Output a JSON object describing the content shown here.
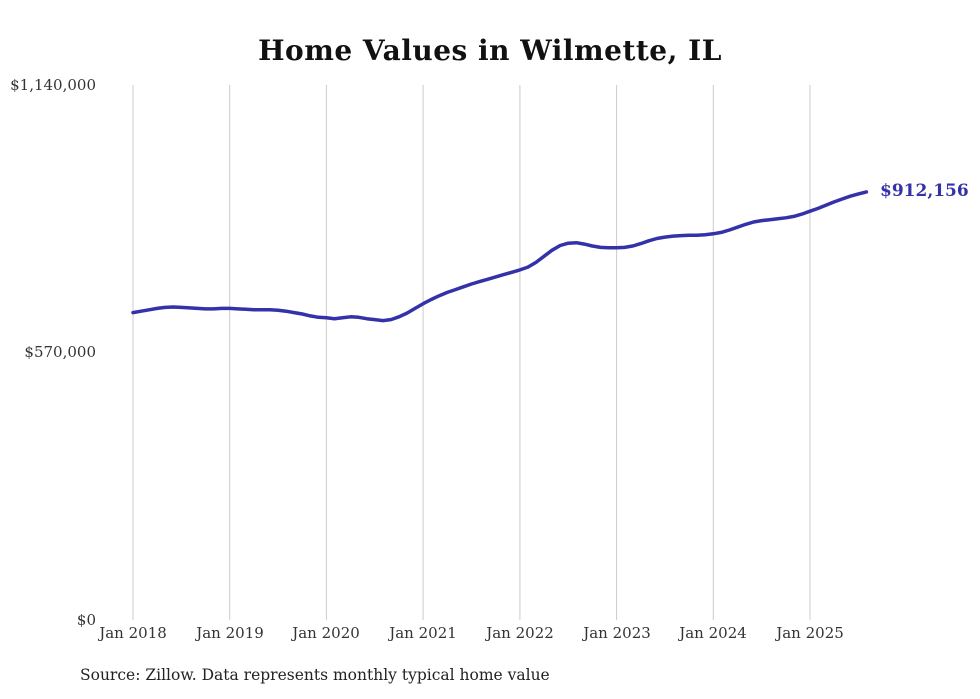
{
  "page": {
    "title": "Home Values in Wilmette, IL",
    "source_note": "Source: Zillow. Data represents monthly typical home value"
  },
  "chart_data": {
    "type": "line",
    "title": "Home Values in Wilmette, IL",
    "series_name": "Monthly typical home value",
    "x_start": "Jan 2018",
    "x_interval": "month",
    "x_tick_labels": [
      "Jan 2018",
      "Jan 2019",
      "Jan 2020",
      "Jan 2021",
      "Jan 2022",
      "Jan 2023",
      "Jan 2024",
      "Jan 2025"
    ],
    "y_ticks": [
      {
        "label": "$1,140,000",
        "value": 1140000
      },
      {
        "label": "$570,000",
        "value": 570000
      },
      {
        "label": "$0",
        "value": 0
      }
    ],
    "ylim": [
      0,
      1140000
    ],
    "grid": "vertical-only",
    "legend": "none",
    "line_color": "#3432a8",
    "grid_color": "#cccccc",
    "end_label": "$912,156",
    "end_value": 912156,
    "values": [
      655000,
      658000,
      661000,
      664000,
      666000,
      667000,
      666000,
      665000,
      664000,
      663000,
      663000,
      664000,
      664000,
      663000,
      662000,
      661000,
      661000,
      661000,
      660000,
      658000,
      655000,
      652000,
      648000,
      645000,
      644000,
      642000,
      644000,
      646000,
      645000,
      642000,
      640000,
      638000,
      640000,
      646000,
      654000,
      664000,
      674000,
      683000,
      691000,
      698000,
      704000,
      710000,
      716000,
      721000,
      726000,
      731000,
      736000,
      741000,
      746000,
      752000,
      762000,
      775000,
      788000,
      798000,
      803000,
      804000,
      801000,
      797000,
      794000,
      793000,
      793000,
      794000,
      797000,
      802000,
      808000,
      813000,
      816000,
      818000,
      819000,
      820000,
      820000,
      821000,
      823000,
      826000,
      831000,
      837000,
      843000,
      848000,
      851000,
      853000,
      855000,
      857000,
      860000,
      865000,
      871000,
      877000,
      884000,
      891000,
      897000,
      903000,
      908000,
      912156
    ]
  }
}
